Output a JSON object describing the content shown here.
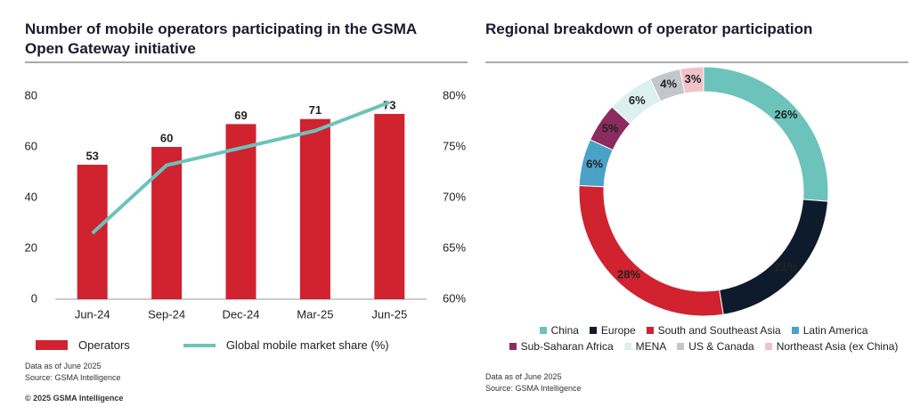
{
  "chart_data": [
    {
      "type": "bar-line",
      "title": "Number of mobile operators participating in the GSMA Open Gateway initiative",
      "categories": [
        "Jun-24",
        "Sep-24",
        "Dec-24",
        "Mar-25",
        "Jun-25"
      ],
      "series": [
        {
          "name": "Operators",
          "type": "bar",
          "color": "#d0222f",
          "values": [
            53,
            60,
            69,
            71,
            73
          ]
        },
        {
          "name": "Global mobile market share (%)",
          "type": "line",
          "axis": "y2",
          "color": "#6cc3bb",
          "values": [
            66.5,
            73.2,
            74.9,
            76.6,
            79.4
          ]
        }
      ],
      "ylim": [
        0,
        80
      ],
      "yticks": [
        0,
        20,
        40,
        60,
        80
      ],
      "y2lim": [
        60,
        80
      ],
      "y2ticks": [
        {
          "value": 60,
          "label": "60%"
        },
        {
          "value": 65,
          "label": "65%"
        },
        {
          "value": 70,
          "label": "70%"
        },
        {
          "value": 75,
          "label": "75%"
        },
        {
          "value": 80,
          "label": "80%"
        }
      ],
      "note": "Data as of June 2025",
      "source": "Source: GSMA Intelligence"
    },
    {
      "type": "donut",
      "title": "Regional breakdown of operator participation",
      "categories": [
        "China",
        "Europe",
        "South and Southeast Asia",
        "Latin America",
        "Sub-Saharan Africa",
        "MENA",
        "US & Canada",
        "Northeast Asia (ex China)"
      ],
      "values": [
        26,
        21,
        28,
        6,
        5,
        6,
        4,
        3
      ],
      "value_labels": [
        "26%",
        "21%",
        "28%",
        "6%",
        "5%",
        "6%",
        "4%",
        "3%"
      ],
      "colors": [
        "#6cc3bb",
        "#0e1b2d",
        "#d0222f",
        "#4aa2c7",
        "#8c2b5f",
        "#dcf0f0",
        "#c3c7cc",
        "#f1c2c9"
      ],
      "note": "Data as of June 2025",
      "source": "Source: GSMA Intelligence"
    }
  ],
  "copyright": "© 2025 GSMA Intelligence"
}
